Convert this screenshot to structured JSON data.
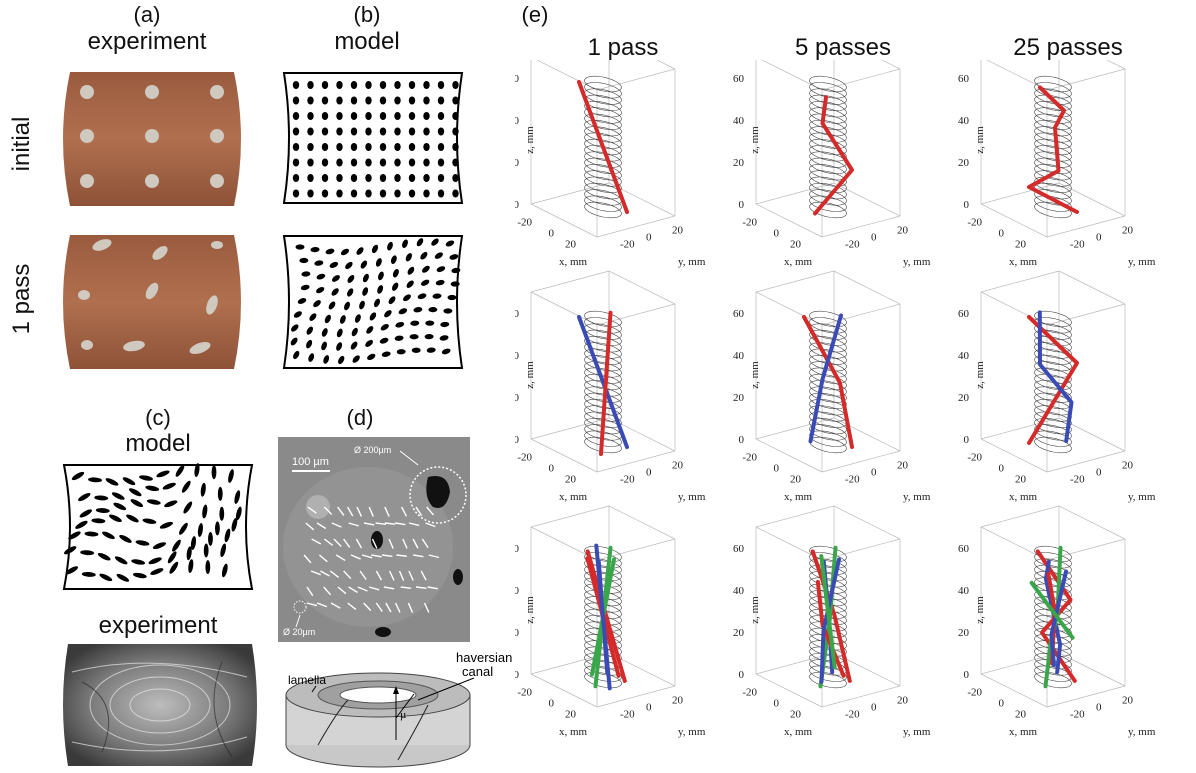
{
  "panels": {
    "a": {
      "tag": "(a)",
      "title": "experiment"
    },
    "b": {
      "tag": "(b)",
      "title": "model"
    },
    "c": {
      "tag": "(c)",
      "title_top": "model",
      "title_bottom": "experiment"
    },
    "d": {
      "tag": "(d)",
      "scale_bar": "100 µm",
      "circle_large": "Ø 200µm",
      "circle_small": "Ø 20µm",
      "labels": {
        "lamella": "lamella",
        "haversian_line1": "haversian",
        "haversian_line2": "canal",
        "mu": "µ"
      }
    },
    "e": {
      "tag": "(e)",
      "columns": [
        "1 pass",
        "5 passes",
        "25 passes"
      ]
    }
  },
  "row_labels": {
    "initial": "initial",
    "after": "1 pass"
  },
  "axes3d": {
    "z_label": "z, mm",
    "x_label": "x, mm",
    "y_label": "y, mm",
    "z_ticks": [
      "0",
      "20",
      "40",
      "60"
    ],
    "x_ticks": [
      "-20",
      "0",
      "20"
    ],
    "y_ticks": [
      "-20",
      "0",
      "20"
    ]
  },
  "colors": {
    "copper": "#a8684a",
    "red": "#d42a2a",
    "blue": "#3a4bb5",
    "green": "#3aa64a",
    "sem_gray": "#8a8a8a"
  }
}
